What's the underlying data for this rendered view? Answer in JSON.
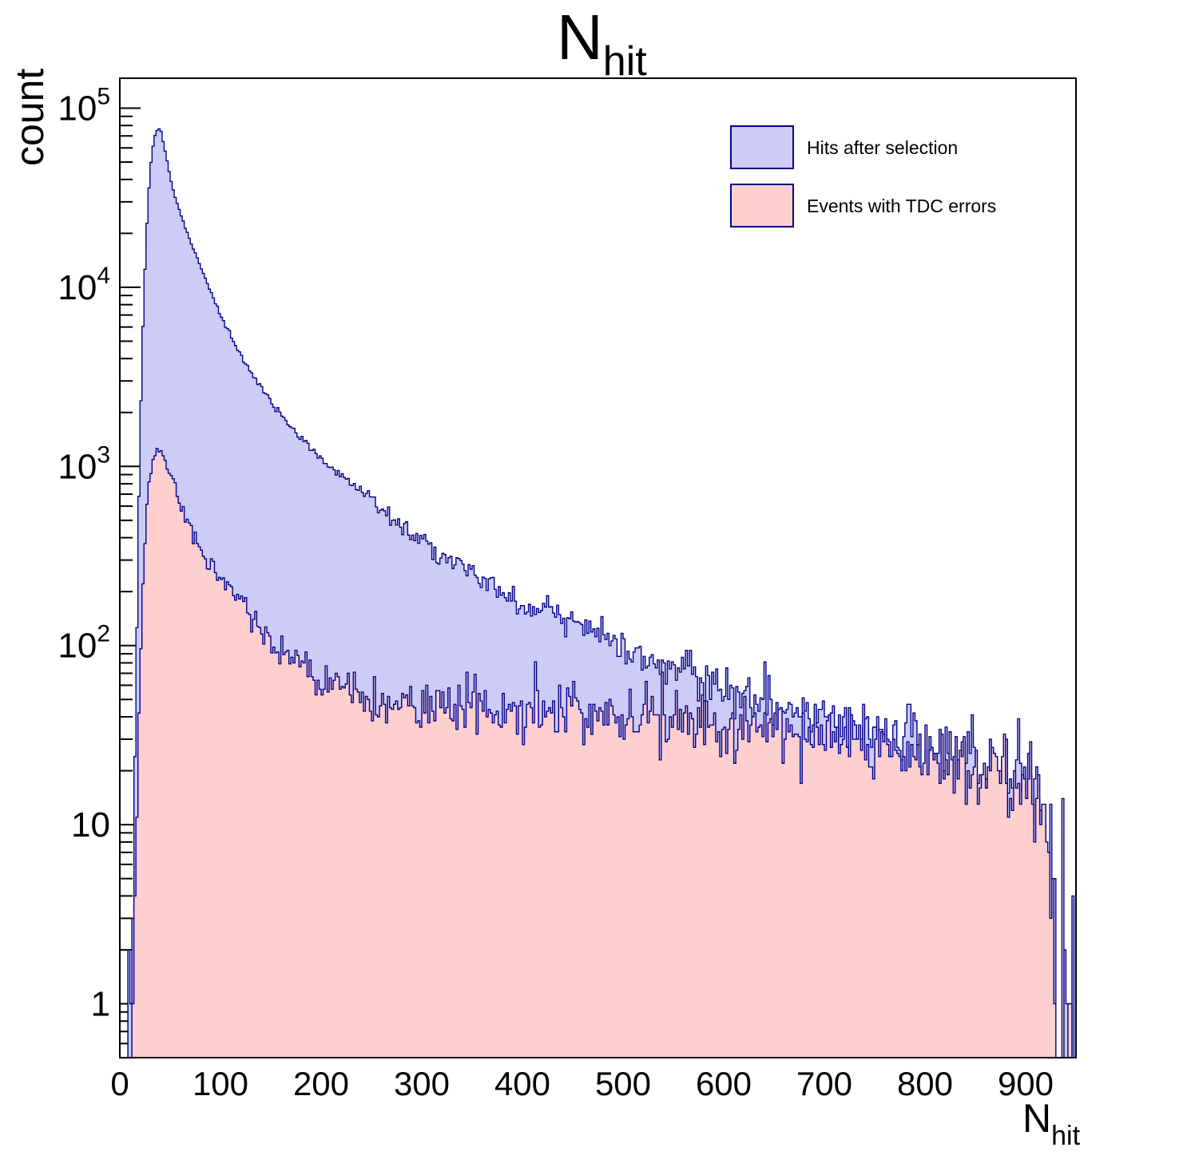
{
  "chart_data": {
    "type": "histogram",
    "title": {
      "main": "N",
      "sub": "hit"
    },
    "xlabel": {
      "main": "N",
      "sub": "hit"
    },
    "ylabel": "count",
    "y_scale": "log",
    "x_range": [
      0,
      950
    ],
    "y_range": [
      0.5,
      147000
    ],
    "grid": false,
    "bin_width": 2,
    "x_major_step": 100,
    "x_minor_step": 20,
    "x_tick_labels": [
      {
        "v": 0,
        "t": "0"
      },
      {
        "v": 100,
        "t": "100"
      },
      {
        "v": 200,
        "t": "200"
      },
      {
        "v": 300,
        "t": "300"
      },
      {
        "v": 400,
        "t": "400"
      },
      {
        "v": 500,
        "t": "500"
      },
      {
        "v": 600,
        "t": "600"
      },
      {
        "v": 700,
        "t": "700"
      },
      {
        "v": 800,
        "t": "800"
      },
      {
        "v": 900,
        "t": "900"
      }
    ],
    "y_tick_labels": [
      {
        "v": 1,
        "base": "1",
        "exp": ""
      },
      {
        "v": 10,
        "base": "10",
        "exp": ""
      },
      {
        "v": 100,
        "base": "10",
        "exp": "2"
      },
      {
        "v": 1000,
        "base": "10",
        "exp": "3"
      },
      {
        "v": 10000,
        "base": "10",
        "exp": "4"
      },
      {
        "v": 100000,
        "base": "10",
        "exp": "5"
      }
    ],
    "legend_position": "top-right",
    "line_color": "#00008b",
    "noise": {
      "seed": 1337,
      "sigma_scale": 1.15,
      "sigma_cap": 0.45,
      "tail_start": 926,
      "tail_drop_prob": 0.55
    },
    "series": [
      {
        "name": "hits-after-selection",
        "label": "Hits after selection",
        "fill": "#ccccf6",
        "line": "#00008b",
        "anchors": [
          [
            8,
            0.8
          ],
          [
            12,
            2
          ],
          [
            15,
            30
          ],
          [
            18,
            300
          ],
          [
            20,
            1500
          ],
          [
            23,
            6000
          ],
          [
            26,
            18000
          ],
          [
            30,
            45000
          ],
          [
            34,
            68000
          ],
          [
            38,
            78000
          ],
          [
            41,
            74000
          ],
          [
            44,
            62000
          ],
          [
            48,
            47000
          ],
          [
            52,
            37000
          ],
          [
            56,
            30500
          ],
          [
            60,
            26000
          ],
          [
            65,
            21500
          ],
          [
            70,
            18200
          ],
          [
            75,
            15400
          ],
          [
            80,
            13200
          ],
          [
            85,
            11200
          ],
          [
            90,
            9600
          ],
          [
            95,
            8200
          ],
          [
            100,
            7000
          ],
          [
            110,
            5400
          ],
          [
            120,
            4200
          ],
          [
            130,
            3400
          ],
          [
            140,
            2800
          ],
          [
            150,
            2300
          ],
          [
            160,
            1950
          ],
          [
            170,
            1650
          ],
          [
            180,
            1420
          ],
          [
            190,
            1250
          ],
          [
            200,
            1100
          ],
          [
            215,
            950
          ],
          [
            230,
            800
          ],
          [
            245,
            690
          ],
          [
            260,
            590
          ],
          [
            275,
            500
          ],
          [
            290,
            430
          ],
          [
            305,
            370
          ],
          [
            320,
            320
          ],
          [
            335,
            280
          ],
          [
            350,
            248
          ],
          [
            365,
            222
          ],
          [
            380,
            198
          ],
          [
            395,
            178
          ],
          [
            410,
            162
          ],
          [
            425,
            150
          ],
          [
            440,
            139
          ],
          [
            455,
            127
          ],
          [
            470,
            116
          ],
          [
            485,
            108
          ],
          [
            500,
            100
          ],
          [
            515,
            92
          ],
          [
            530,
            84
          ],
          [
            545,
            77
          ],
          [
            560,
            71
          ],
          [
            575,
            65
          ],
          [
            590,
            60
          ],
          [
            605,
            56
          ],
          [
            620,
            52
          ],
          [
            635,
            49
          ],
          [
            650,
            46
          ],
          [
            665,
            44
          ],
          [
            680,
            42
          ],
          [
            695,
            40
          ],
          [
            710,
            38
          ],
          [
            725,
            36
          ],
          [
            740,
            34
          ],
          [
            755,
            32
          ],
          [
            770,
            31
          ],
          [
            785,
            29
          ],
          [
            800,
            28
          ],
          [
            815,
            26
          ],
          [
            830,
            25
          ],
          [
            845,
            24
          ],
          [
            860,
            22
          ],
          [
            875,
            21
          ],
          [
            890,
            19
          ],
          [
            900,
            18
          ],
          [
            908,
            15
          ],
          [
            915,
            12
          ],
          [
            921,
            8
          ],
          [
            926,
            5
          ],
          [
            932,
            3
          ],
          [
            940,
            2
          ],
          [
            947,
            1.5
          ]
        ]
      },
      {
        "name": "events-with-tdc-errors",
        "label": "Events with TDC errors",
        "fill": "#fdcfcf",
        "line": "#00008b",
        "anchors": [
          [
            13,
            0.7
          ],
          [
            16,
            5
          ],
          [
            19,
            40
          ],
          [
            22,
            160
          ],
          [
            25,
            400
          ],
          [
            28,
            700
          ],
          [
            31,
            950
          ],
          [
            34,
            1120
          ],
          [
            37,
            1220
          ],
          [
            40,
            1210
          ],
          [
            43,
            1130
          ],
          [
            46,
            1010
          ],
          [
            50,
            880
          ],
          [
            54,
            760
          ],
          [
            58,
            660
          ],
          [
            63,
            560
          ],
          [
            68,
            480
          ],
          [
            73,
            420
          ],
          [
            78,
            370
          ],
          [
            84,
            320
          ],
          [
            90,
            280
          ],
          [
            96,
            250
          ],
          [
            102,
            228
          ],
          [
            110,
            198
          ],
          [
            118,
            175
          ],
          [
            126,
            155
          ],
          [
            134,
            138
          ],
          [
            142,
            124
          ],
          [
            150,
            110
          ],
          [
            158,
            99
          ],
          [
            166,
            91
          ],
          [
            174,
            84
          ],
          [
            182,
            78
          ],
          [
            190,
            72
          ],
          [
            200,
            66
          ],
          [
            212,
            61
          ],
          [
            224,
            57
          ],
          [
            238,
            53
          ],
          [
            252,
            50
          ],
          [
            268,
            48
          ],
          [
            285,
            47
          ],
          [
            305,
            46
          ],
          [
            330,
            45.5
          ],
          [
            355,
            45
          ],
          [
            380,
            44.5
          ],
          [
            405,
            44
          ],
          [
            430,
            43.5
          ],
          [
            455,
            43
          ],
          [
            480,
            42
          ],
          [
            505,
            41
          ],
          [
            530,
            40
          ],
          [
            555,
            39
          ],
          [
            580,
            37
          ],
          [
            605,
            36
          ],
          [
            630,
            34
          ],
          [
            655,
            33
          ],
          [
            680,
            31
          ],
          [
            705,
            30
          ],
          [
            730,
            29
          ],
          [
            755,
            27
          ],
          [
            780,
            26
          ],
          [
            805,
            24
          ],
          [
            830,
            23
          ],
          [
            855,
            21
          ],
          [
            875,
            20
          ],
          [
            892,
            18
          ],
          [
            904,
            15
          ],
          [
            913,
            12
          ],
          [
            920,
            9
          ],
          [
            925,
            5
          ],
          [
            930,
            2
          ],
          [
            938,
            1
          ],
          [
            947,
            0.8
          ]
        ]
      }
    ]
  }
}
